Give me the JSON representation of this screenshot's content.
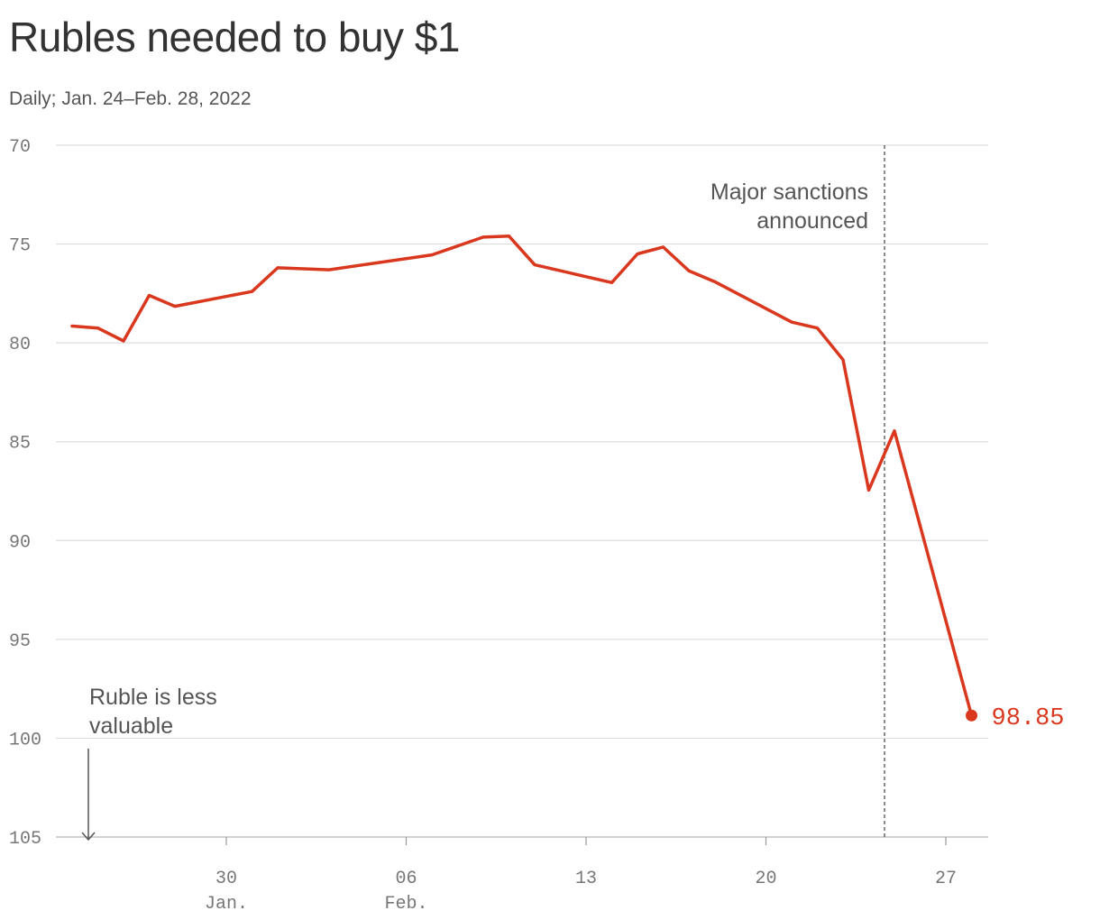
{
  "chart_data": {
    "type": "line",
    "title": "Rubles needed to buy $1",
    "subtitle": "Daily; Jan. 24–Feb. 28, 2022",
    "y_axis": {
      "ylim": [
        70,
        105
      ],
      "inverted": true,
      "ticks": [
        70,
        75,
        80,
        85,
        90,
        95,
        100,
        105
      ],
      "tick_labels": [
        "70",
        "75",
        "80",
        "85",
        "90",
        "95",
        "100",
        "105"
      ]
    },
    "x_axis": {
      "range": [
        "2022-01-24",
        "2022-02-28"
      ],
      "ticks": [
        {
          "date": "2022-01-30",
          "label": "30",
          "sublabel": "Jan."
        },
        {
          "date": "2022-02-06",
          "label": "06",
          "sublabel": "Feb."
        },
        {
          "date": "2022-02-13",
          "label": "13",
          "sublabel": ""
        },
        {
          "date": "2022-02-20",
          "label": "20",
          "sublabel": ""
        },
        {
          "date": "2022-02-27",
          "label": "27",
          "sublabel": ""
        }
      ]
    },
    "grid": true,
    "series": [
      {
        "color": "#d9381e",
        "points": [
          {
            "x": "2022-01-24",
            "y": 79.15
          },
          {
            "x": "2022-01-25",
            "y": 79.25
          },
          {
            "x": "2022-01-26",
            "y": 79.9
          },
          {
            "x": "2022-01-27",
            "y": 77.6
          },
          {
            "x": "2022-01-28",
            "y": 78.15
          },
          {
            "x": "2022-01-31",
            "y": 77.4
          },
          {
            "x": "2022-02-01",
            "y": 76.2
          },
          {
            "x": "2022-02-02",
            "y": 76.25
          },
          {
            "x": "2022-02-03",
            "y": 76.3
          },
          {
            "x": "2022-02-07",
            "y": 75.55
          },
          {
            "x": "2022-02-09",
            "y": 74.65
          },
          {
            "x": "2022-02-10",
            "y": 74.6
          },
          {
            "x": "2022-02-11",
            "y": 76.05
          },
          {
            "x": "2022-02-14",
            "y": 76.95
          },
          {
            "x": "2022-02-15",
            "y": 75.5
          },
          {
            "x": "2022-02-16",
            "y": 75.15
          },
          {
            "x": "2022-02-17",
            "y": 76.35
          },
          {
            "x": "2022-02-18",
            "y": 76.9
          },
          {
            "x": "2022-02-21",
            "y": 78.95
          },
          {
            "x": "2022-02-22",
            "y": 79.25
          },
          {
            "x": "2022-02-23",
            "y": 80.85
          },
          {
            "x": "2022-02-24",
            "y": 87.45
          },
          {
            "x": "2022-02-25",
            "y": 84.45
          },
          {
            "x": "2022-02-28",
            "y": 98.85
          }
        ]
      }
    ],
    "end_label": "98.85",
    "annotations": {
      "sanctions": {
        "date": "2022-02-25",
        "lines": [
          "Major sanctions",
          "announced"
        ]
      },
      "direction": {
        "lines": [
          "Ruble is less",
          "valuable"
        ]
      }
    }
  }
}
